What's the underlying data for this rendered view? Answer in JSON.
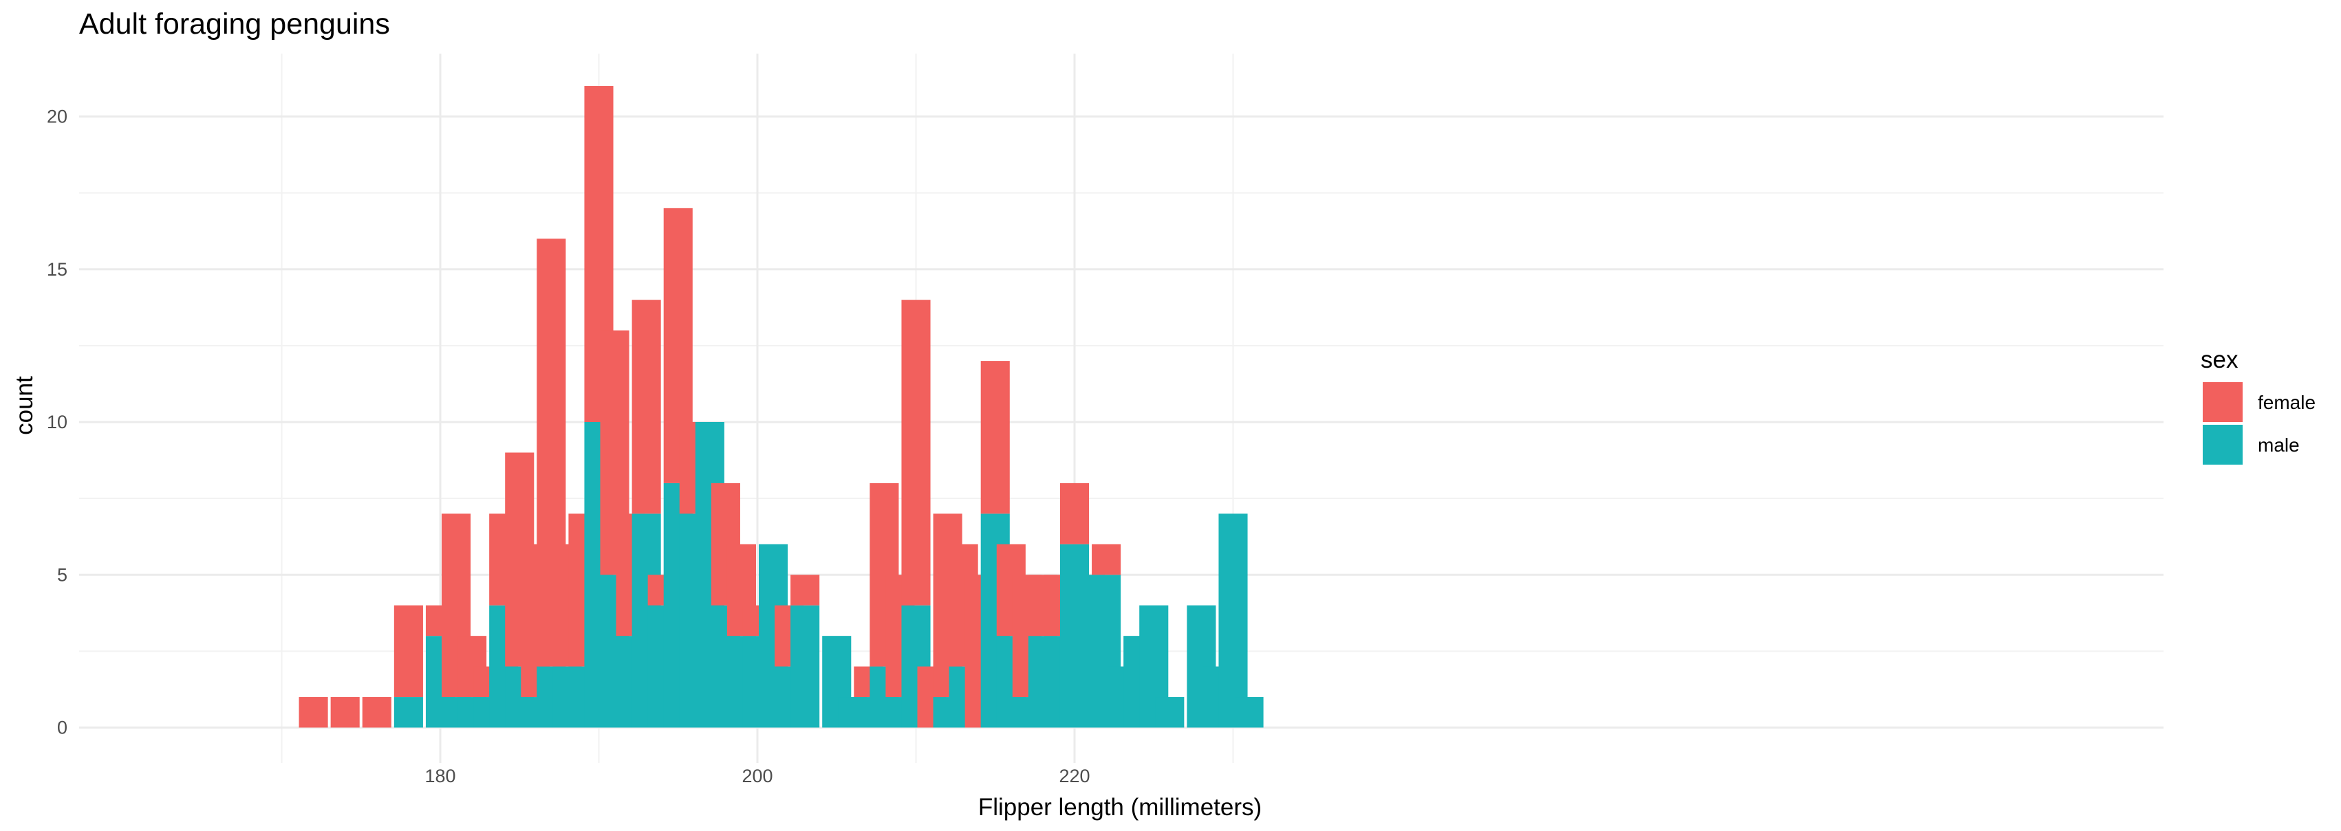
{
  "chart_data": {
    "type": "bar",
    "stacked": true,
    "title": "Adult foraging penguins",
    "xlabel": "Flipper length (millimeters)",
    "ylabel": "count",
    "xlim": [
      168,
      234
    ],
    "ylim": [
      -1,
      22
    ],
    "x_ticks": [
      180,
      200,
      220
    ],
    "x_tick_labels": [
      "180",
      "200",
      "220"
    ],
    "y_ticks": [
      0,
      5,
      10,
      15,
      20
    ],
    "y_tick_labels": [
      "0",
      "5",
      "10",
      "15",
      "20"
    ],
    "grid": true,
    "legend": {
      "title": "sex",
      "position": "right"
    },
    "x": [
      172,
      174,
      176,
      178,
      180,
      181,
      182,
      183,
      184,
      185,
      186,
      187,
      188,
      189,
      190,
      191,
      192,
      193,
      194,
      195,
      196,
      197,
      198,
      199,
      200,
      201,
      202,
      203,
      205,
      206,
      207,
      208,
      209,
      210,
      211,
      212,
      213,
      214,
      215,
      216,
      217,
      218,
      219,
      220,
      221,
      222,
      223,
      224,
      225,
      226,
      228,
      229,
      230,
      231
    ],
    "series": [
      {
        "name": "male",
        "color": "#19B4B8",
        "values": [
          0,
          0,
          0,
          1,
          3,
          1,
          1,
          1,
          4,
          2,
          1,
          2,
          2,
          2,
          10,
          5,
          3,
          7,
          4,
          8,
          7,
          10,
          4,
          3,
          3,
          6,
          2,
          4,
          3,
          1,
          1,
          2,
          1,
          4,
          0,
          1,
          2,
          0,
          7,
          3,
          1,
          3,
          3,
          6,
          5,
          5,
          2,
          3,
          4,
          1,
          4,
          2,
          7,
          1
        ]
      },
      {
        "name": "female",
        "color": "#F2605D",
        "values": [
          1,
          1,
          1,
          3,
          1,
          6,
          2,
          1,
          3,
          7,
          5,
          14,
          4,
          5,
          11,
          8,
          4,
          7,
          1,
          9,
          3,
          0,
          4,
          3,
          1,
          0,
          2,
          1,
          0,
          0,
          1,
          6,
          4,
          10,
          2,
          6,
          4,
          5,
          5,
          3,
          4,
          2,
          2,
          2,
          0,
          1,
          0,
          0,
          0,
          0,
          0,
          0,
          0,
          0
        ]
      }
    ]
  }
}
